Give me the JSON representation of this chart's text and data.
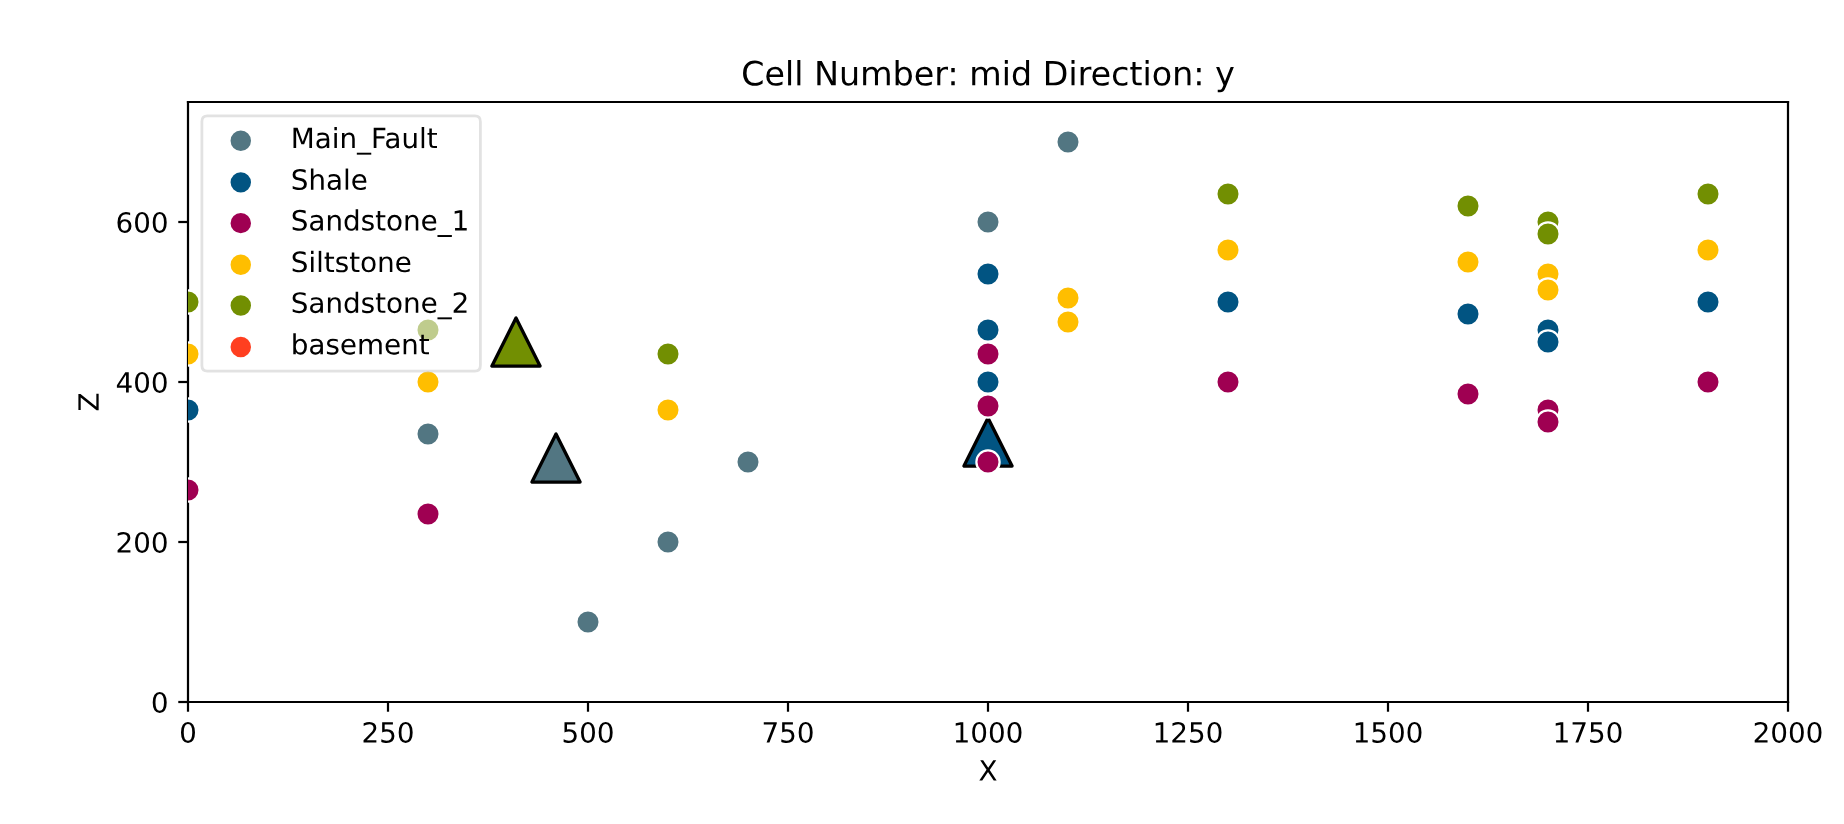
{
  "chart_data": {
    "type": "scatter",
    "title": "Cell Number: mid Direction: y",
    "xlabel": "X",
    "ylabel": "Z",
    "xlim": [
      0,
      2000
    ],
    "xticks": [
      0,
      250,
      500,
      750,
      1000,
      1250,
      1500,
      1750,
      2000
    ],
    "ylim": [
      0,
      750
    ],
    "yticks": [
      0,
      200,
      400,
      600
    ],
    "grid": false,
    "legend": "top left",
    "marker": "circle",
    "series": [
      {
        "name": "Main_Fault",
        "color": "#527682",
        "x": [
          300,
          500,
          600,
          700,
          1000,
          1100
        ],
        "values": [
          335,
          100,
          200,
          300,
          600,
          700
        ]
      },
      {
        "name": "Shale",
        "color": "#015482",
        "x": [
          0,
          1000,
          1000,
          1000,
          1300,
          1600,
          1700,
          1700,
          1900
        ],
        "values": [
          365,
          535,
          465,
          400,
          500,
          485,
          465,
          450,
          500
        ]
      },
      {
        "name": "Sandstone_1",
        "color": "#9f0052",
        "x": [
          0,
          300,
          1000,
          1000,
          1000,
          1300,
          1600,
          1700,
          1700,
          1900
        ],
        "values": [
          265,
          235,
          435,
          370,
          300,
          400,
          385,
          365,
          350,
          400
        ]
      },
      {
        "name": "Siltstone",
        "color": "#ffbe00",
        "x": [
          0,
          300,
          600,
          1100,
          1100,
          1300,
          1600,
          1700,
          1700,
          1900
        ],
        "values": [
          435,
          400,
          365,
          505,
          475,
          565,
          550,
          535,
          515,
          565
        ]
      },
      {
        "name": "Sandstone_2",
        "color": "#728f02",
        "x": [
          0,
          300,
          600,
          1300,
          1600,
          1700,
          1700,
          1900
        ],
        "values": [
          500,
          465,
          435,
          635,
          620,
          600,
          585,
          635
        ]
      },
      {
        "name": "basement",
        "color": "#ff3f20"
      },
      {
        "color": "#015482",
        "marker": "triangle",
        "x": [
          1000
        ],
        "values": [
          325
        ]
      },
      {
        "color": "#527682",
        "marker": "triangle",
        "x": [
          460
        ],
        "values": [
          305
        ]
      },
      {
        "color": "#728f02",
        "marker": "triangle",
        "x": [
          410
        ],
        "values": [
          450
        ]
      }
    ]
  }
}
